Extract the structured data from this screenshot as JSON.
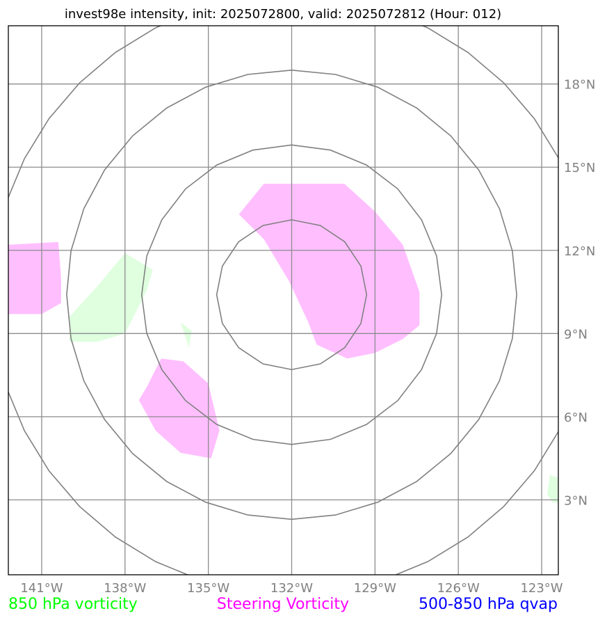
{
  "chart_data": {
    "type": "map",
    "title": "invest98e intensity, init: 2025072800, valid: 2025072812 (Hour: 012)",
    "lon_range": [
      -142.2,
      -122.4
    ],
    "lat_range": [
      0.3,
      20.1
    ],
    "x_ticks": [
      {
        "lon": -141,
        "label": "141°W"
      },
      {
        "lon": -138,
        "label": "138°W"
      },
      {
        "lon": -135,
        "label": "135°W"
      },
      {
        "lon": -132,
        "label": "132°W"
      },
      {
        "lon": -129,
        "label": "129°W"
      },
      {
        "lon": -126,
        "label": "126°W"
      },
      {
        "lon": -123,
        "label": "123°W"
      }
    ],
    "y_ticks": [
      {
        "lat": 3,
        "label": "3°N"
      },
      {
        "lat": 6,
        "label": "6°N"
      },
      {
        "lat": 9,
        "label": "9°N"
      },
      {
        "lat": 12,
        "label": "12°N"
      },
      {
        "lat": 15,
        "label": "15°N"
      },
      {
        "lat": 18,
        "label": "18°N"
      }
    ],
    "grid": true,
    "center": {
      "lon": -132,
      "lat": 10.4
    },
    "range_rings_deg": [
      2.7,
      5.4,
      8.1,
      10.8
    ],
    "range_ring_color": "#808080",
    "legend": [
      {
        "label": "850 hPa vorticity",
        "color": "#00ff00"
      },
      {
        "label": "Steering Vorticity",
        "color": "#ff00ff"
      },
      {
        "label": "500-850 hPa qvap",
        "color": "#0000ff"
      }
    ],
    "fields": [
      {
        "name": "Steering Vorticity",
        "color": "#ffbfff",
        "polygons": [
          [
            [
              -133.9,
              13.3
            ],
            [
              -133,
              14.4
            ],
            [
              -130.1,
              14.4
            ],
            [
              -129,
              13.4
            ],
            [
              -128,
              12.2
            ],
            [
              -127.4,
              10.5
            ],
            [
              -127.4,
              9.3
            ],
            [
              -128,
              8.8
            ],
            [
              -129,
              8.3
            ],
            [
              -130,
              8.1
            ],
            [
              -131.1,
              8.6
            ],
            [
              -131.4,
              9.4
            ],
            [
              -132.1,
              10.9
            ],
            [
              -133,
              12.4
            ]
          ],
          [
            [
              -142.2,
              12.2
            ],
            [
              -140.4,
              12.3
            ],
            [
              -140.3,
              11
            ],
            [
              -140.3,
              10.1
            ],
            [
              -141,
              9.7
            ],
            [
              -142.2,
              9.7
            ]
          ],
          [
            [
              -137.2,
              7.1
            ],
            [
              -136.7,
              8.1
            ],
            [
              -135.9,
              8
            ],
            [
              -135,
              7.2
            ],
            [
              -134.6,
              5.5
            ],
            [
              -134.9,
              4.5
            ],
            [
              -136,
              4.7
            ],
            [
              -136.9,
              5.5
            ],
            [
              -137.5,
              6.6
            ]
          ]
        ]
      },
      {
        "name": "850 hPa vorticity",
        "color": "#dfffdf",
        "polygons": [
          [
            [
              -140,
              9.6
            ],
            [
              -139,
              10.7
            ],
            [
              -138,
              11.9
            ],
            [
              -137,
              11.3
            ],
            [
              -137.2,
              10.6
            ],
            [
              -137.6,
              9.8
            ],
            [
              -138,
              9
            ],
            [
              -139,
              8.7
            ],
            [
              -140,
              8.7
            ]
          ],
          [
            [
              -136,
              9.4
            ],
            [
              -135.6,
              9.1
            ],
            [
              -135.7,
              8.5
            ]
          ],
          [
            [
              -122.7,
              3.9
            ],
            [
              -122.8,
              3.2
            ],
            [
              -122.6,
              2.9
            ],
            [
              -122.4,
              2.9
            ],
            [
              -122.4,
              3.8
            ]
          ]
        ]
      }
    ]
  }
}
